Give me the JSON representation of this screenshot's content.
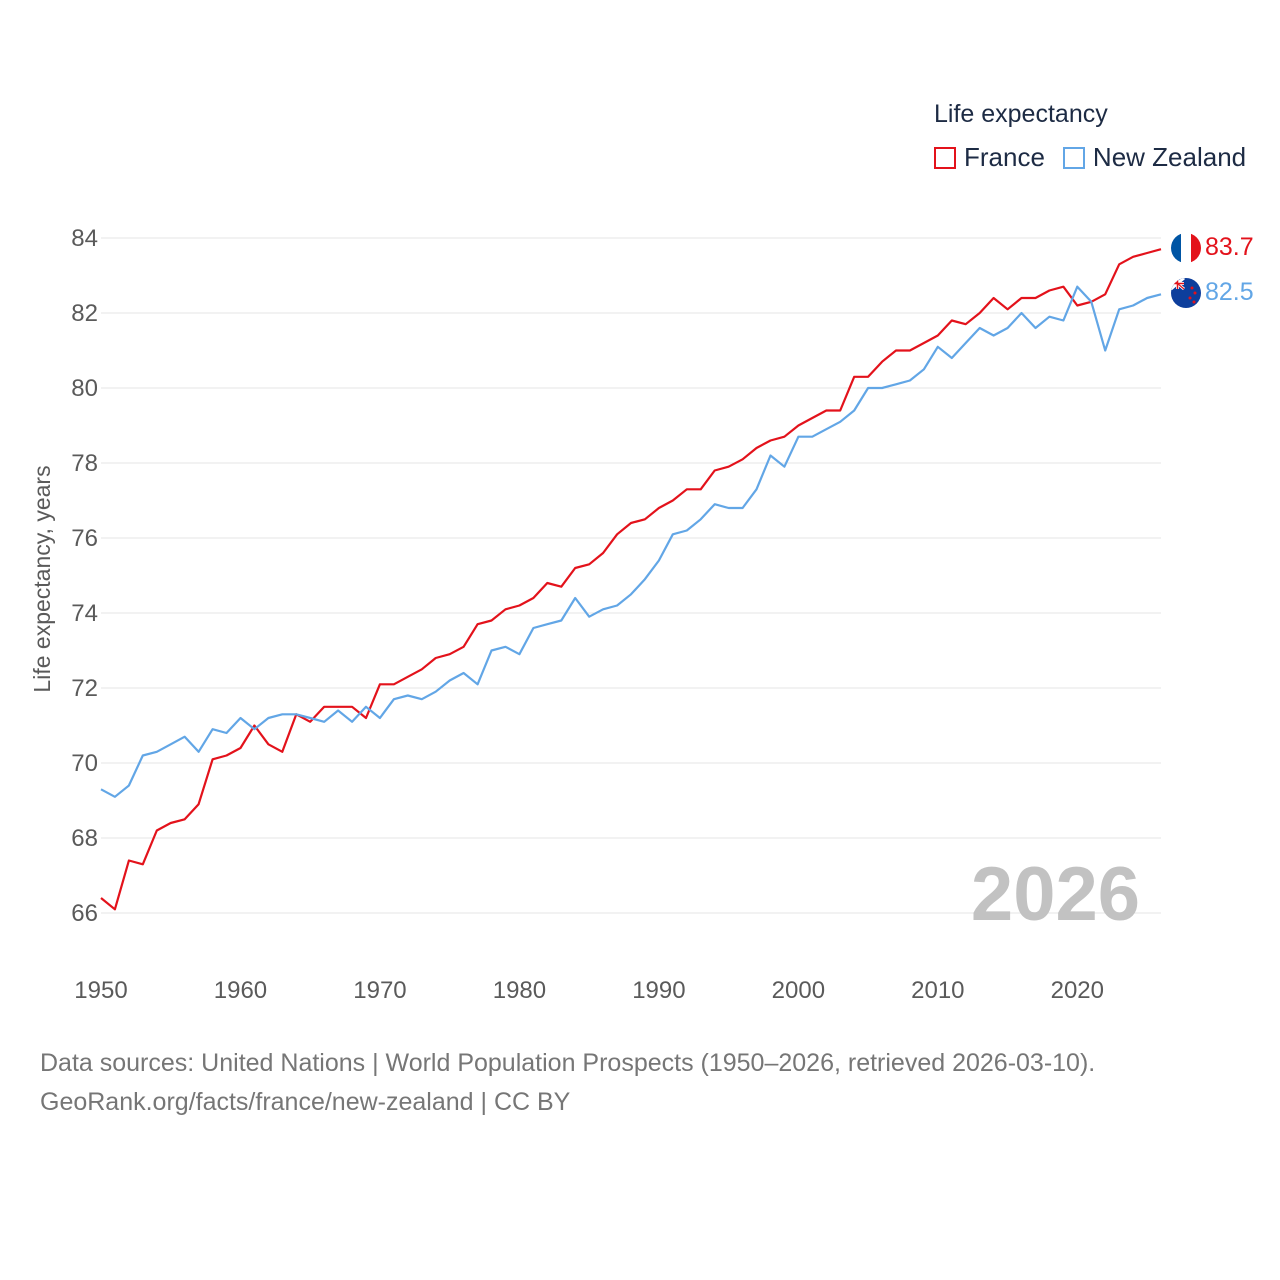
{
  "legend": {
    "title": "Life expectancy",
    "items": [
      {
        "label": "France",
        "color": "#e3121b"
      },
      {
        "label": "New Zealand",
        "color": "#62a6e6"
      }
    ]
  },
  "year_watermark": "2026",
  "footer": {
    "line1": "Data sources: United Nations | World Population Prospects (1950–2026, retrieved 2026-03-10).",
    "line2": "GeoRank.org/facts/france/new-zealand | CC BY"
  },
  "chart_data": {
    "type": "line",
    "title": "",
    "xlabel": "",
    "ylabel": "Life expectancy, years",
    "xlim": [
      1950,
      2026
    ],
    "ylim": [
      65,
      84.6
    ],
    "x_ticks": [
      1950,
      1960,
      1970,
      1980,
      1990,
      2000,
      2010,
      2020
    ],
    "y_ticks": [
      66,
      68,
      70,
      72,
      74,
      76,
      78,
      80,
      82,
      84
    ],
    "grid": true,
    "x": [
      1950,
      1951,
      1952,
      1953,
      1954,
      1955,
      1956,
      1957,
      1958,
      1959,
      1960,
      1961,
      1962,
      1963,
      1964,
      1965,
      1966,
      1967,
      1968,
      1969,
      1970,
      1971,
      1972,
      1973,
      1974,
      1975,
      1976,
      1977,
      1978,
      1979,
      1980,
      1981,
      1982,
      1983,
      1984,
      1985,
      1986,
      1987,
      1988,
      1989,
      1990,
      1991,
      1992,
      1993,
      1994,
      1995,
      1996,
      1997,
      1998,
      1999,
      2000,
      2001,
      2002,
      2003,
      2004,
      2005,
      2006,
      2007,
      2008,
      2009,
      2010,
      2011,
      2012,
      2013,
      2014,
      2015,
      2016,
      2017,
      2018,
      2019,
      2020,
      2021,
      2022,
      2023,
      2024,
      2025,
      2026
    ],
    "series": [
      {
        "name": "France",
        "color": "#e3121b",
        "end_label": "83.7",
        "values": [
          66.4,
          66.1,
          67.4,
          67.3,
          68.2,
          68.4,
          68.5,
          68.9,
          70.1,
          70.2,
          70.4,
          71.0,
          70.5,
          70.3,
          71.3,
          71.1,
          71.5,
          71.5,
          71.5,
          71.2,
          72.1,
          72.1,
          72.3,
          72.5,
          72.8,
          72.9,
          73.1,
          73.7,
          73.8,
          74.1,
          74.2,
          74.4,
          74.8,
          74.7,
          75.2,
          75.3,
          75.6,
          76.1,
          76.4,
          76.5,
          76.8,
          77.0,
          77.3,
          77.3,
          77.8,
          77.9,
          78.1,
          78.4,
          78.6,
          78.7,
          79.0,
          79.2,
          79.4,
          79.4,
          80.3,
          80.3,
          80.7,
          81.0,
          81.0,
          81.2,
          81.4,
          81.8,
          81.7,
          82.0,
          82.4,
          82.1,
          82.4,
          82.4,
          82.6,
          82.7,
          82.2,
          82.3,
          82.5,
          83.3,
          83.5,
          83.6,
          83.7
        ]
      },
      {
        "name": "New Zealand",
        "color": "#62a6e6",
        "end_label": "82.5",
        "values": [
          69.3,
          69.1,
          69.4,
          70.2,
          70.3,
          70.5,
          70.7,
          70.3,
          70.9,
          70.8,
          71.2,
          70.9,
          71.2,
          71.3,
          71.3,
          71.2,
          71.1,
          71.4,
          71.1,
          71.5,
          71.2,
          71.7,
          71.8,
          71.7,
          71.9,
          72.2,
          72.4,
          72.1,
          73.0,
          73.1,
          72.9,
          73.6,
          73.7,
          73.8,
          74.4,
          73.9,
          74.1,
          74.2,
          74.5,
          74.9,
          75.4,
          76.1,
          76.2,
          76.5,
          76.9,
          76.8,
          76.8,
          77.3,
          78.2,
          77.9,
          78.7,
          78.7,
          78.9,
          79.1,
          79.4,
          80.0,
          80.0,
          80.1,
          80.2,
          80.5,
          81.1,
          80.8,
          81.2,
          81.6,
          81.4,
          81.6,
          82.0,
          81.6,
          81.9,
          81.8,
          82.7,
          82.3,
          81.0,
          82.1,
          82.2,
          82.4,
          82.5
        ]
      }
    ]
  }
}
